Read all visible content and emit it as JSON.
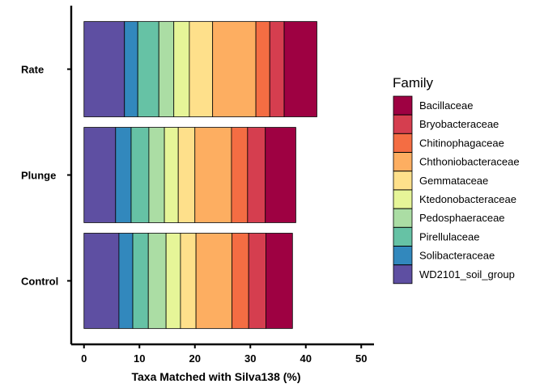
{
  "chart_data": {
    "type": "bar",
    "orientation": "horizontal",
    "stacked": true,
    "categories": [
      "Control",
      "Plunge",
      "Rate"
    ],
    "xlabel": "Taxa Matched with Silva138 (%)",
    "ylabel": "",
    "xlim": [
      -2.3,
      52.3
    ],
    "x_ticks": [
      0,
      10,
      20,
      30,
      40,
      50
    ],
    "grid": false,
    "legend": {
      "title": "Family",
      "position": "right"
    },
    "series": [
      {
        "name": "WD2101_soil_group",
        "color": "#5E4FA2",
        "values": [
          6.3,
          5.7,
          7.3
        ]
      },
      {
        "name": "Solibacteraceae",
        "color": "#3288BD",
        "values": [
          2.5,
          2.8,
          2.4
        ]
      },
      {
        "name": "Pirellulaceae",
        "color": "#66C2A5",
        "values": [
          2.8,
          3.2,
          3.8
        ]
      },
      {
        "name": "Pedosphaeraceae",
        "color": "#ABDDA4",
        "values": [
          3.2,
          2.8,
          2.7
        ]
      },
      {
        "name": "Ktedonobacteraceae",
        "color": "#E6F598",
        "values": [
          2.6,
          2.5,
          2.8
        ]
      },
      {
        "name": "Gemmataceae",
        "color": "#FEE08B",
        "values": [
          2.8,
          3.0,
          4.2
        ]
      },
      {
        "name": "Chthoniobacteraceae",
        "color": "#FDAE61",
        "values": [
          6.5,
          6.6,
          7.8
        ]
      },
      {
        "name": "Chitinophagaceae",
        "color": "#F46D43",
        "values": [
          3.0,
          2.9,
          2.5
        ]
      },
      {
        "name": "Bryobacteraceae",
        "color": "#D53E4F",
        "values": [
          3.1,
          3.2,
          2.6
        ]
      },
      {
        "name": "Bacillaceae",
        "color": "#9E0142",
        "values": [
          4.8,
          5.5,
          5.9
        ]
      }
    ]
  }
}
